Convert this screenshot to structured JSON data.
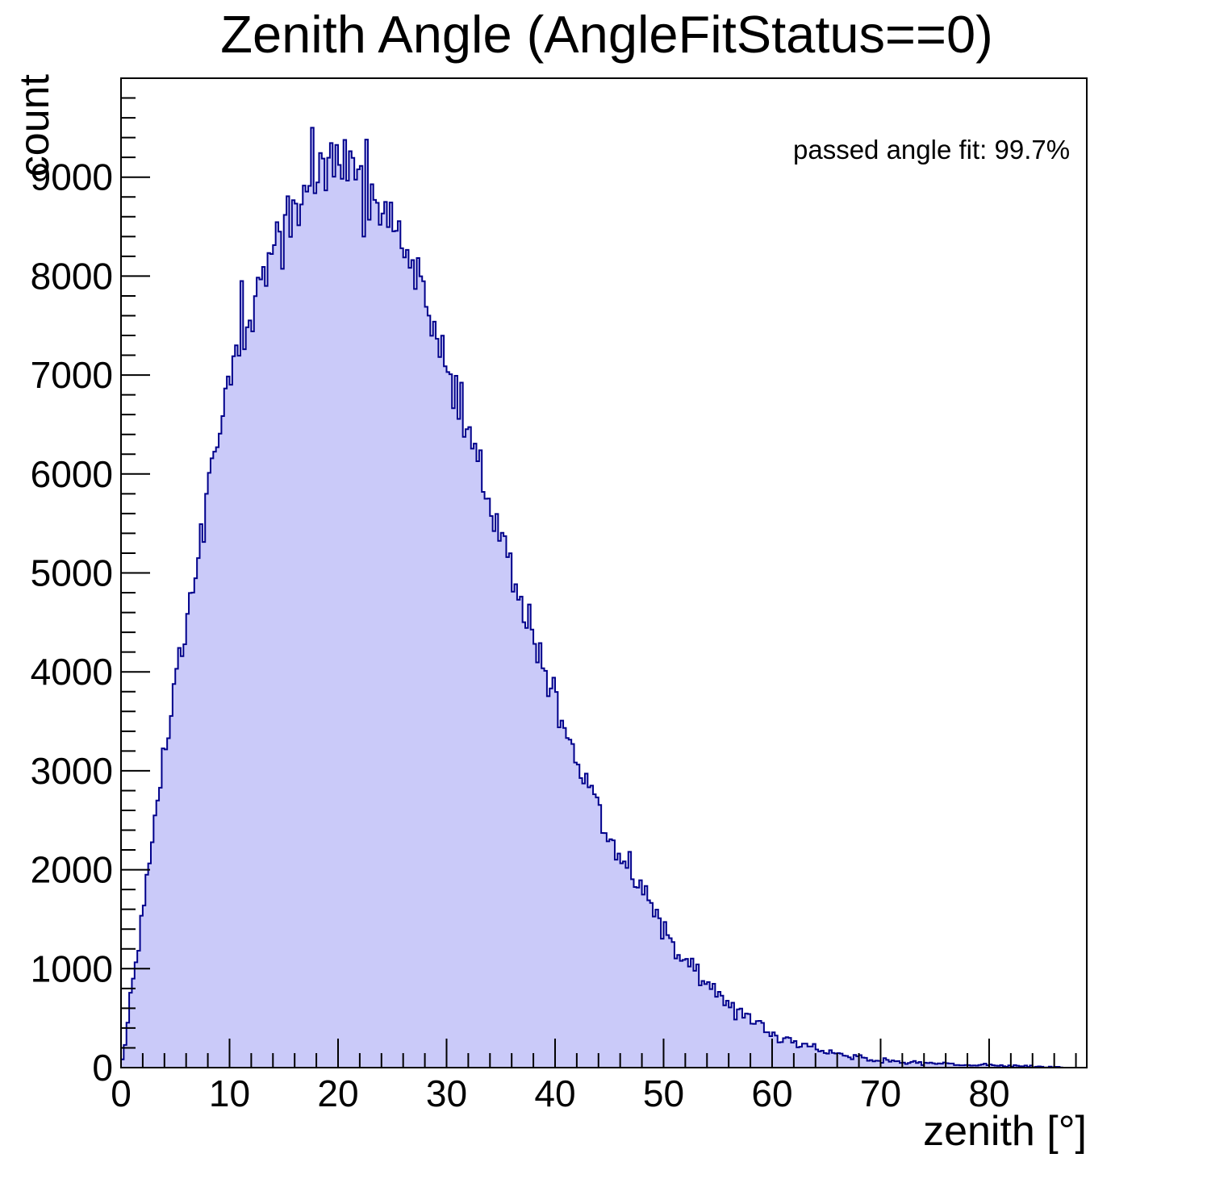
{
  "page": {
    "background": "#ffffff"
  },
  "chart_data": {
    "type": "histogram",
    "title": "Zenith Angle (AngleFitStatus==0)",
    "xlabel": "zenith [°]",
    "ylabel": "count",
    "annotation": "passed angle fit: 99.7%",
    "xlim": [
      0,
      89
    ],
    "ylim": [
      0,
      10000
    ],
    "bin_width_deg": 0.25,
    "x_axis": {
      "major_step": 10,
      "minor_step": 2,
      "tick_labels": [
        "0",
        "10",
        "20",
        "30",
        "40",
        "50",
        "60",
        "70",
        "80"
      ]
    },
    "y_axis": {
      "major_step": 1000,
      "minor_step": 200,
      "tick_labels": [
        "0",
        "1000",
        "2000",
        "3000",
        "4000",
        "5000",
        "6000",
        "7000",
        "8000",
        "9000"
      ]
    },
    "colors": {
      "fill": "#cacaf9",
      "line": "#00008b",
      "axis": "#000000",
      "text": "#000000"
    },
    "peak": {
      "x_deg": 17.7,
      "count": 9500
    },
    "envelope_points": [
      [
        0,
        10
      ],
      [
        0.5,
        300
      ],
      [
        1,
        820
      ],
      [
        1.5,
        1210
      ],
      [
        2,
        1610
      ],
      [
        2.5,
        2030
      ],
      [
        3,
        2420
      ],
      [
        3.5,
        2760
      ],
      [
        4,
        3130
      ],
      [
        4.5,
        3500
      ],
      [
        5,
        3860
      ],
      [
        5.5,
        4210
      ],
      [
        6,
        4500
      ],
      [
        6.5,
        4850
      ],
      [
        7,
        5150
      ],
      [
        7.5,
        5450
      ],
      [
        8,
        5870
      ],
      [
        8.5,
        6100
      ],
      [
        9,
        6400
      ],
      [
        9.5,
        6720
      ],
      [
        10,
        6950
      ],
      [
        10.5,
        7150
      ],
      [
        11,
        7350
      ],
      [
        11.5,
        7500
      ],
      [
        12,
        7650
      ],
      [
        12.5,
        7800
      ],
      [
        13,
        7950
      ],
      [
        13.5,
        8100
      ],
      [
        14,
        8250
      ],
      [
        14.5,
        8350
      ],
      [
        15,
        8450
      ],
      [
        15.5,
        8550
      ],
      [
        16,
        8650
      ],
      [
        16.5,
        8750
      ],
      [
        17,
        8850
      ],
      [
        17.5,
        8950
      ],
      [
        18,
        9050
      ],
      [
        18.5,
        9100
      ],
      [
        19,
        9150
      ],
      [
        19.5,
        9180
      ],
      [
        20,
        9200
      ],
      [
        21,
        9180
      ],
      [
        22,
        9150
      ],
      [
        23,
        9000
      ],
      [
        24,
        8800
      ],
      [
        25,
        8600
      ],
      [
        26,
        8300
      ],
      [
        27,
        8000
      ],
      [
        28,
        7700
      ],
      [
        29,
        7450
      ],
      [
        30,
        7100
      ],
      [
        31,
        6800
      ],
      [
        32,
        6500
      ],
      [
        33,
        6100
      ],
      [
        34,
        5750
      ],
      [
        35,
        5400
      ],
      [
        36,
        5050
      ],
      [
        37,
        4700
      ],
      [
        38,
        4300
      ],
      [
        39,
        4000
      ],
      [
        40,
        3700
      ],
      [
        41,
        3400
      ],
      [
        42,
        3100
      ],
      [
        43,
        2850
      ],
      [
        44,
        2600
      ],
      [
        45,
        2350
      ],
      [
        46,
        2150
      ],
      [
        47,
        1950
      ],
      [
        48,
        1750
      ],
      [
        49,
        1550
      ],
      [
        50,
        1380
      ],
      [
        51,
        1220
      ],
      [
        52,
        1080
      ],
      [
        53,
        950
      ],
      [
        54,
        840
      ],
      [
        55,
        730
      ],
      [
        56,
        640
      ],
      [
        57,
        560
      ],
      [
        58,
        480
      ],
      [
        59,
        420
      ],
      [
        60,
        360
      ],
      [
        61,
        310
      ],
      [
        62,
        265
      ],
      [
        63,
        225
      ],
      [
        64,
        190
      ],
      [
        65,
        160
      ],
      [
        66,
        135
      ],
      [
        67,
        115
      ],
      [
        68,
        98
      ],
      [
        69,
        85
      ],
      [
        70,
        75
      ],
      [
        71,
        66
      ],
      [
        72,
        58
      ],
      [
        73,
        52
      ],
      [
        74,
        46
      ],
      [
        75,
        41
      ],
      [
        76,
        36
      ],
      [
        77,
        32
      ],
      [
        78,
        28
      ],
      [
        79,
        24
      ],
      [
        80,
        21
      ],
      [
        81,
        18
      ],
      [
        82,
        15
      ],
      [
        83,
        13
      ],
      [
        84,
        11
      ],
      [
        85,
        9
      ],
      [
        86,
        6
      ],
      [
        86.5,
        4
      ],
      [
        87,
        0
      ],
      [
        89,
        0
      ]
    ],
    "features": [
      {
        "x": 11.05,
        "count": 7950
      },
      {
        "x": 17.65,
        "count": 9500
      },
      {
        "x": 22.35,
        "count": 8400
      },
      {
        "x": 22.6,
        "count": 9380
      }
    ],
    "noise": {
      "model": "gaussian-sqrt",
      "amplitude": 1.7,
      "seed": 20240613
    }
  }
}
